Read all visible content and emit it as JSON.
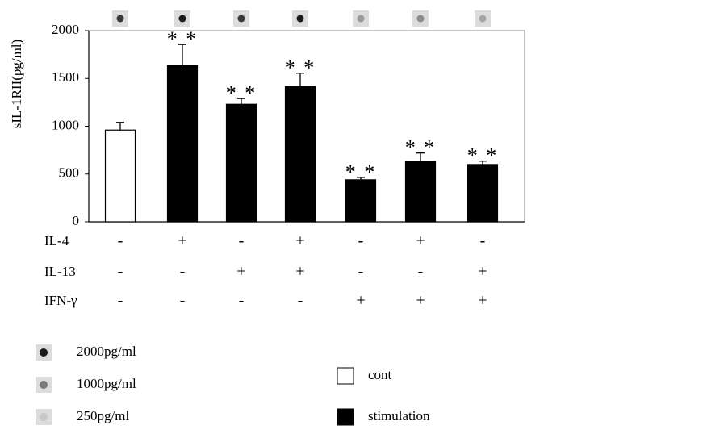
{
  "chart_data": {
    "type": "bar",
    "y_label": "sIL-1RII(pg/ml)",
    "categories": [
      null,
      null,
      null,
      null,
      null,
      null,
      null
    ],
    "values": [
      960,
      1635,
      1230,
      1415,
      440,
      630,
      600
    ],
    "errors": [
      80,
      220,
      60,
      140,
      25,
      90,
      35
    ],
    "significance": [
      null,
      "* *",
      "* *",
      "* *",
      "* *",
      "* *",
      "* *"
    ],
    "group": [
      0,
      1,
      1,
      1,
      1,
      1,
      1
    ],
    "legend": [
      {
        "name": "cont",
        "color": "#ffffff"
      },
      {
        "name": "stimulation",
        "color": "#000000"
      }
    ],
    "blot_colors": [
      "#3a3a3a",
      "#1a1a1a",
      "#3a3a3a",
      "#1a1a1a",
      "#9a9a9a",
      "#8a8a8a",
      "#a5a5a5"
    ],
    "blot_legend": [
      {
        "label": "2000pg/ml",
        "color": "#1a1a1a"
      },
      {
        "label": "1000pg/ml",
        "color": "#7a7a7a"
      },
      {
        "label": "250pg/ml",
        "color": "#c8c8c8"
      }
    ],
    "conditions": [
      {
        "label": "IL-4",
        "values": [
          "-",
          "+",
          "-",
          "+",
          "-",
          "+",
          "-"
        ]
      },
      {
        "label": "IL-13",
        "values": [
          "-",
          "-",
          "+",
          "+",
          "-",
          "-",
          "+"
        ]
      },
      {
        "label": "IFN-γ",
        "values": [
          "-",
          "-",
          "-",
          "-",
          "+",
          "+",
          "+"
        ]
      }
    ],
    "ylim": [
      0,
      2000
    ],
    "yticks": [
      0,
      500,
      1000,
      1500,
      2000
    ]
  }
}
